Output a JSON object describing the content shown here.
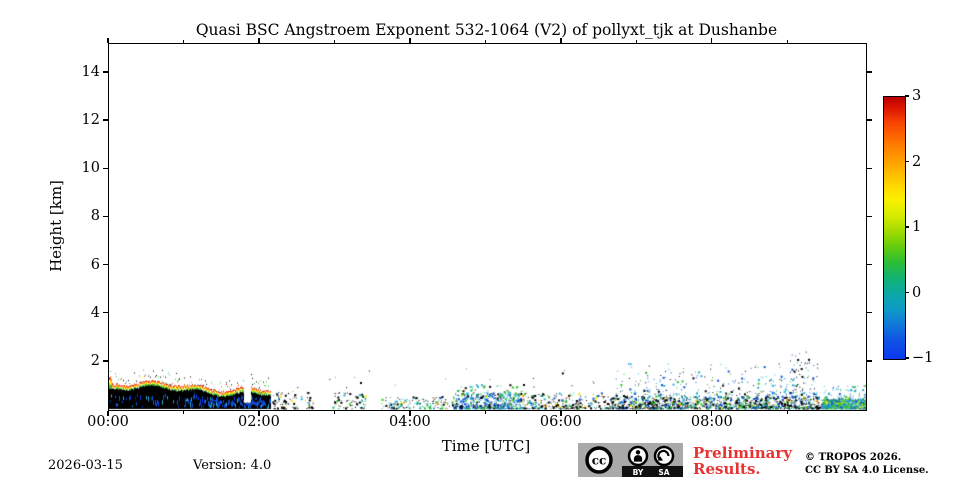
{
  "title": "Quasi BSC Angstroem Exponent 532-1064 (V2) of pollyxt_tjk at Dushanbe",
  "footer": {
    "date": "2026-03-15",
    "version": "Version: 4.0",
    "preliminary_line1": "Preliminary",
    "preliminary_line2": "Results.",
    "preliminary_color": "#e83333",
    "copyright_line1": "© TROPOS 2026.",
    "copyright_line2": "CC BY SA 4.0 License.",
    "cc_badge": {
      "cc": "cc",
      "by": "BY",
      "sa": "SA"
    }
  },
  "chart_data": {
    "type": "heatmap",
    "title": "Quasi BSC Angstroem Exponent 532-1064 (V2) of pollyxt_tjk at Dushanbe",
    "xlabel": "Time [UTC]",
    "ylabel": "Height [km]",
    "x_range_hours": [
      0,
      10.03
    ],
    "y_range_km": [
      0,
      15.2
    ],
    "grid": false,
    "x_ticks_major": [
      {
        "hour": 0,
        "label": "00:00"
      },
      {
        "hour": 2,
        "label": "02:00"
      },
      {
        "hour": 4,
        "label": "04:00"
      },
      {
        "hour": 6,
        "label": "06:00"
      },
      {
        "hour": 8,
        "label": "08:00"
      }
    ],
    "x_ticks_minor_hours": [
      1,
      3,
      5,
      7,
      9
    ],
    "y_ticks": [
      {
        "km": 2,
        "label": "2"
      },
      {
        "km": 4,
        "label": "4"
      },
      {
        "km": 6,
        "label": "6"
      },
      {
        "km": 8,
        "label": "8"
      },
      {
        "km": 10,
        "label": "10"
      },
      {
        "km": 12,
        "label": "12"
      },
      {
        "km": 14,
        "label": "14"
      }
    ],
    "colorbar": {
      "min": -1,
      "max": 3,
      "ticks": [
        3,
        2,
        1,
        0,
        -1
      ],
      "tick_labels": [
        "3",
        "2",
        "1",
        "0",
        "−1"
      ],
      "colormap": "jet",
      "gradient_stops": [
        {
          "p": 0,
          "c": "#b80000"
        },
        {
          "p": 4,
          "c": "#dc1400"
        },
        {
          "p": 10,
          "c": "#f84400"
        },
        {
          "p": 18,
          "c": "#ff7a00"
        },
        {
          "p": 26,
          "c": "#ffa800"
        },
        {
          "p": 33,
          "c": "#ffd200"
        },
        {
          "p": 39,
          "c": "#fbf000"
        },
        {
          "p": 45,
          "c": "#d8ec00"
        },
        {
          "p": 51,
          "c": "#a4dc00"
        },
        {
          "p": 57,
          "c": "#66cc0c"
        },
        {
          "p": 63,
          "c": "#2cbe34"
        },
        {
          "p": 69,
          "c": "#12b272"
        },
        {
          "p": 75,
          "c": "#0ca8a4"
        },
        {
          "p": 81,
          "c": "#0e9ac6"
        },
        {
          "p": 87,
          "c": "#1078d8"
        },
        {
          "p": 93,
          "c": "#0f52e4"
        },
        {
          "p": 100,
          "c": "#0c38ee"
        }
      ]
    },
    "palette_colors": {
      "black": "#000000",
      "blue": "#1352d6",
      "deepblue": "#0a3ce8",
      "cyan": "#27b0d4",
      "teal": "#0fa9a8",
      "green": "#2fbe2f",
      "lime": "#8cd800",
      "yellow": "#ffe400",
      "orange": "#ff8c00",
      "red": "#e61e00"
    },
    "regions": [
      {
        "kind": "dense_layer",
        "t": [
          0.0,
          2.15
        ],
        "top_km": [
          0.6,
          1.17
        ],
        "fringe": [
          "green",
          "yellow",
          "orange",
          "red"
        ],
        "note": "dense aerosol layer 0-1.1 km, black core with blue patches and rainbow top fringe"
      },
      {
        "kind": "speckle",
        "t": [
          2.15,
          2.7
        ],
        "h": [
          0.02,
          0.75
        ],
        "dots": 90,
        "bias": 1.8,
        "palette": [
          [
            "black",
            0.78
          ],
          [
            "cyan",
            0.08
          ],
          [
            "green",
            0.08
          ],
          [
            "yellow",
            0.03
          ],
          [
            "orange",
            0.03
          ]
        ]
      },
      {
        "kind": "speckle",
        "t": [
          2.95,
          3.4
        ],
        "h": [
          0.02,
          0.7
        ],
        "dots": 70,
        "bias": 1.6,
        "palette": [
          [
            "black",
            0.6
          ],
          [
            "cyan",
            0.2
          ],
          [
            "green",
            0.15
          ],
          [
            "yellow",
            0.05
          ]
        ]
      },
      {
        "kind": "speckle",
        "t": [
          3.6,
          4.55
        ],
        "h": [
          0.02,
          0.5
        ],
        "dots": 150,
        "bias": 1.6,
        "palette": [
          [
            "black",
            0.35
          ],
          [
            "cyan",
            0.25
          ],
          [
            "green",
            0.2
          ],
          [
            "yellow",
            0.1
          ],
          [
            "blue",
            0.05
          ],
          [
            "orange",
            0.05
          ]
        ]
      },
      {
        "kind": "speckle",
        "t": [
          4.55,
          5.45
        ],
        "h": [
          0.02,
          0.65
        ],
        "dots": 520,
        "bias": 1.8,
        "palette": [
          [
            "blue",
            0.45
          ],
          [
            "cyan",
            0.2
          ],
          [
            "green",
            0.15
          ],
          [
            "black",
            0.15
          ],
          [
            "lime",
            0.05
          ]
        ]
      },
      {
        "kind": "speckle",
        "t": [
          4.6,
          5.5
        ],
        "h": [
          0.6,
          1.0
        ],
        "dots": 60,
        "bias": 1.4,
        "palette": [
          [
            "green",
            0.4
          ],
          [
            "cyan",
            0.3
          ],
          [
            "black",
            0.3
          ]
        ]
      },
      {
        "kind": "speckle",
        "t": [
          5.45,
          6.65
        ],
        "h": [
          0.02,
          0.7
        ],
        "dots": 280,
        "bias": 1.9,
        "palette": [
          [
            "black",
            0.55
          ],
          [
            "cyan",
            0.15
          ],
          [
            "green",
            0.12
          ],
          [
            "blue",
            0.08
          ],
          [
            "yellow",
            0.05
          ],
          [
            "orange",
            0.05
          ]
        ]
      },
      {
        "kind": "speckle",
        "t": [
          6.65,
          9.45
        ],
        "h": [
          0.02,
          0.5
        ],
        "dots": 1250,
        "bias": 1.7,
        "palette": [
          [
            "black",
            0.42
          ],
          [
            "blue",
            0.2
          ],
          [
            "cyan",
            0.14
          ],
          [
            "green",
            0.14
          ],
          [
            "lime",
            0.04
          ],
          [
            "yellow",
            0.03
          ],
          [
            "orange",
            0.03
          ]
        ]
      },
      {
        "kind": "speckle",
        "t": [
          6.7,
          9.45
        ],
        "h": [
          0.5,
          1.9
        ],
        "dots": 330,
        "bias": 2.2,
        "palette": [
          [
            "blue",
            0.3
          ],
          [
            "cyan",
            0.25
          ],
          [
            "black",
            0.25
          ],
          [
            "green",
            0.2
          ]
        ]
      },
      {
        "kind": "speckle",
        "t": [
          9.02,
          9.3
        ],
        "h": [
          0.3,
          2.55
        ],
        "dots": 55,
        "bias": 1.6,
        "palette": [
          [
            "black",
            0.5
          ],
          [
            "blue",
            0.3
          ],
          [
            "cyan",
            0.2
          ]
        ]
      },
      {
        "kind": "speckle",
        "t": [
          9.45,
          10.03
        ],
        "h": [
          0.02,
          0.42
        ],
        "dots": 700,
        "bias": 1.4,
        "palette": [
          [
            "green",
            0.3
          ],
          [
            "cyan",
            0.28
          ],
          [
            "blue",
            0.22
          ],
          [
            "lime",
            0.1
          ],
          [
            "teal",
            0.05
          ],
          [
            "yellow",
            0.05
          ]
        ]
      },
      {
        "kind": "speckle",
        "t": [
          9.45,
          10.03
        ],
        "h": [
          0.42,
          1.0
        ],
        "dots": 70,
        "bias": 1.8,
        "palette": [
          [
            "cyan",
            0.4
          ],
          [
            "green",
            0.3
          ],
          [
            "blue",
            0.3
          ]
        ]
      },
      {
        "kind": "speckle",
        "t": [
          2.3,
          6.6
        ],
        "h": [
          0.9,
          1.7
        ],
        "dots": 18,
        "bias": 1.2,
        "palette": [
          [
            "black",
            0.7
          ],
          [
            "green",
            0.3
          ]
        ]
      }
    ]
  }
}
